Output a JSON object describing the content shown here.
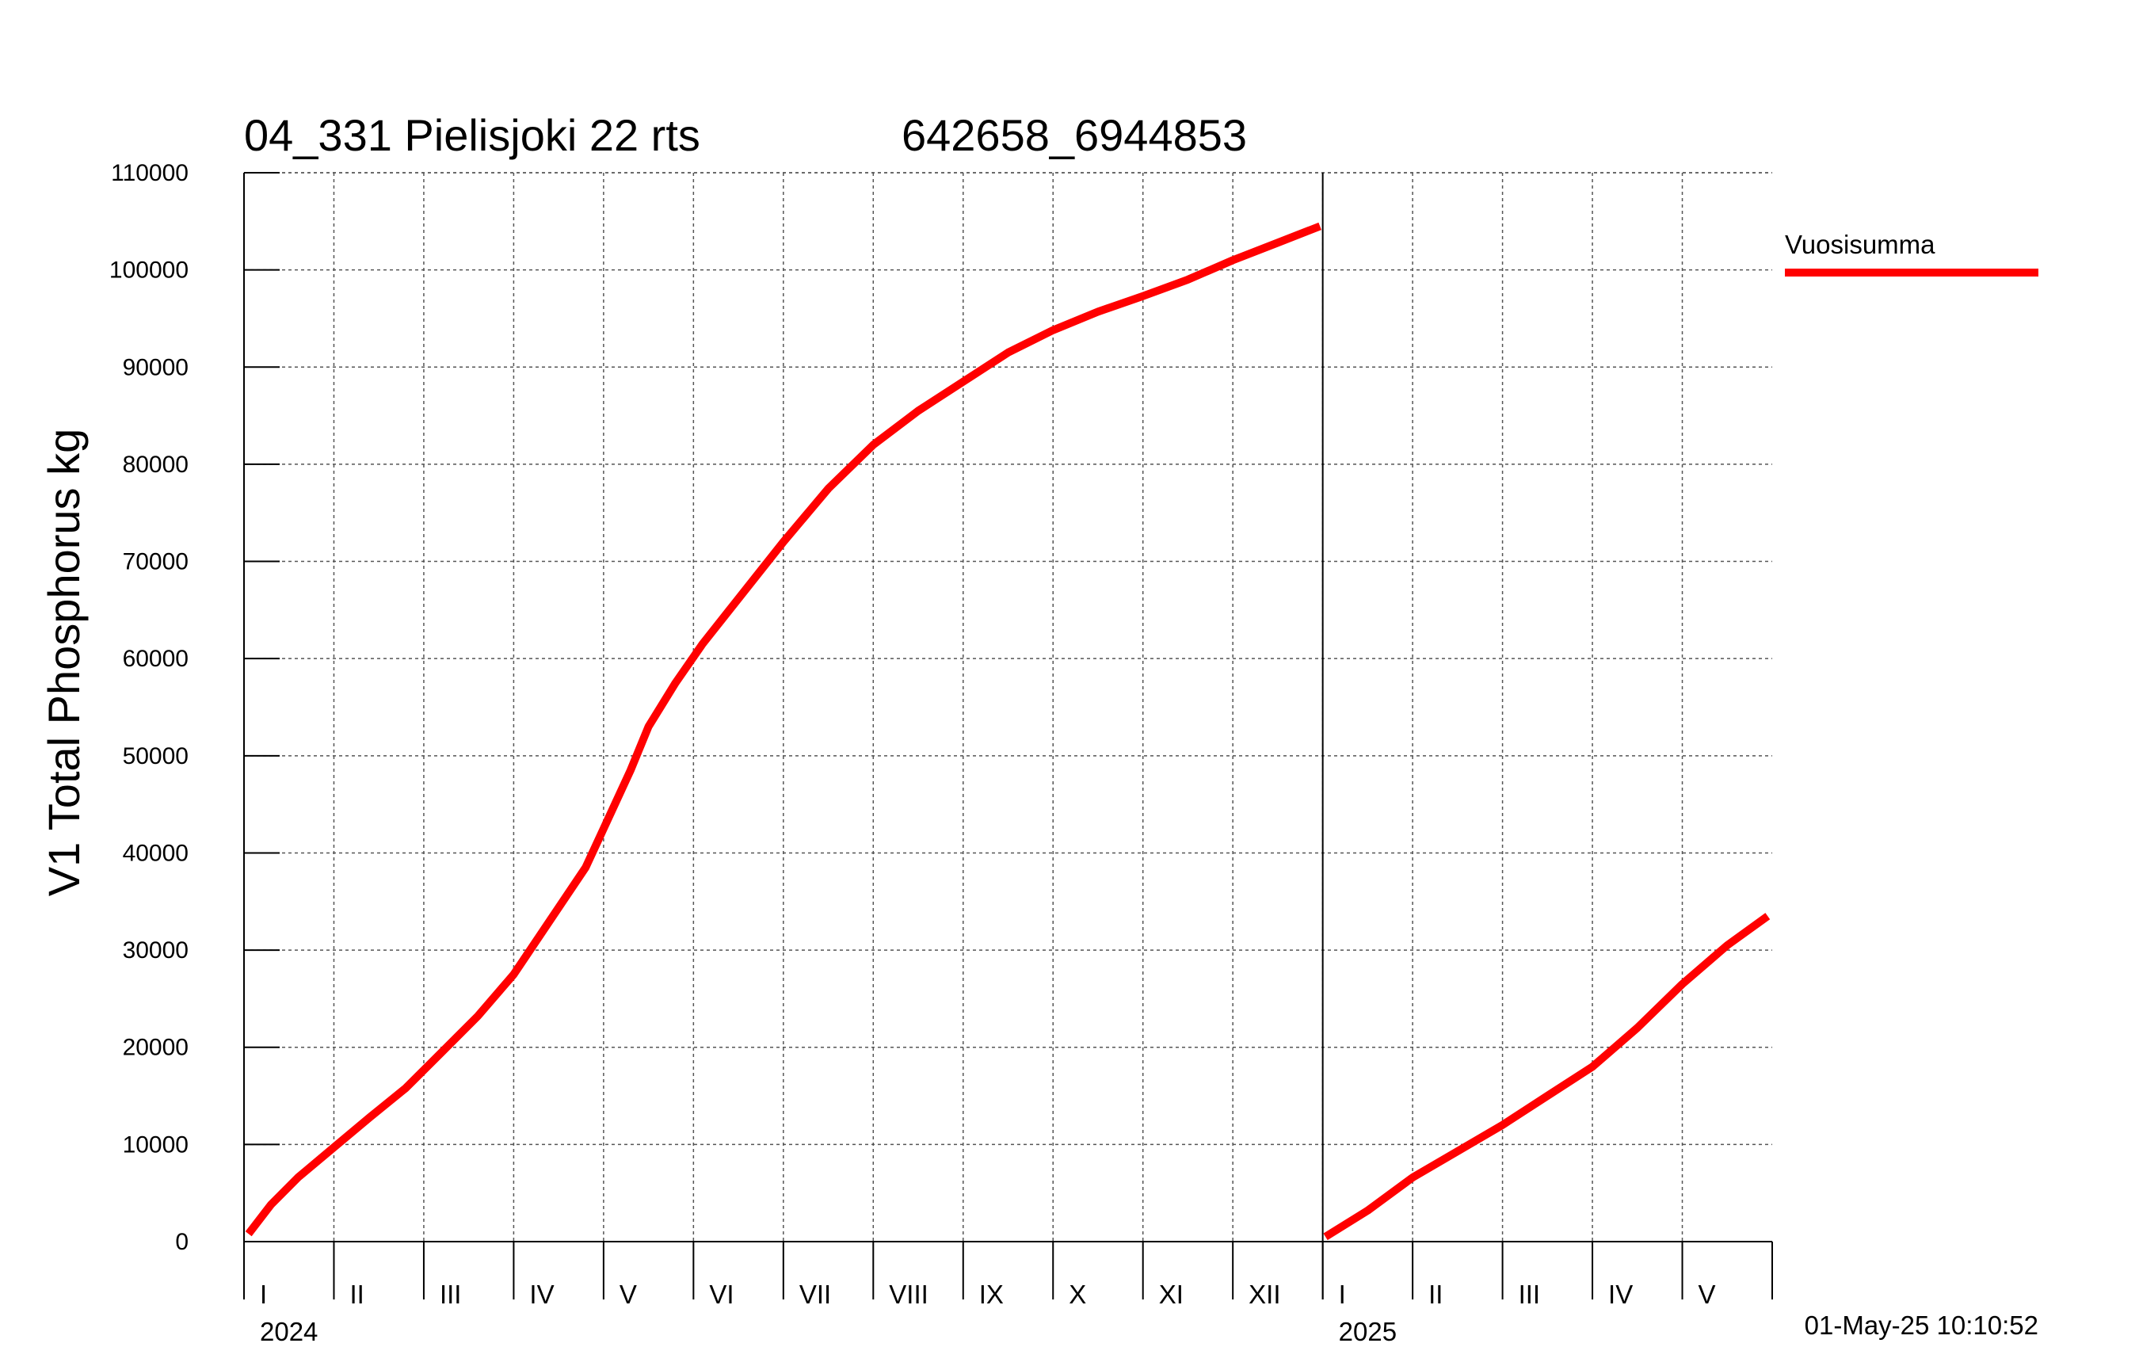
{
  "chart_data": {
    "type": "line",
    "title": "04_331 Pielisjoki 22 rts",
    "subtitle": "642658_6944853",
    "ylabel": "V1 Total Phosphorus kg",
    "ylim": [
      0,
      110000
    ],
    "yticks": [
      "0",
      "10000",
      "20000",
      "30000",
      "40000",
      "50000",
      "60000",
      "70000",
      "80000",
      "90000",
      "100000",
      "110000"
    ],
    "xlim_months": [
      0,
      17
    ],
    "months": [
      "I",
      "II",
      "III",
      "IV",
      "V",
      "VI",
      "VII",
      "VIII",
      "IX",
      "X",
      "XI",
      "XII",
      "I",
      "II",
      "III",
      "IV",
      "V"
    ],
    "years": [
      {
        "label": "2024",
        "month_index": 0
      },
      {
        "label": "2025",
        "month_index": 12
      }
    ],
    "series": [
      {
        "name": "Vuosisumma",
        "color": "#ff0000",
        "segments": [
          {
            "x": [
              0.05,
              0.3,
              0.6,
              1.0,
              1.4,
              1.8,
              2.2,
              2.6,
              3.0,
              3.4,
              3.8,
              4.0,
              4.3,
              4.5,
              4.8,
              5.1,
              5.4,
              5.7,
              6.0,
              6.5,
              7.0,
              7.5,
              8.0,
              8.5,
              9.0,
              9.5,
              10.0,
              10.5,
              11.0,
              11.5,
              11.97
            ],
            "y": [
              800,
              3800,
              6600,
              9700,
              12800,
              15800,
              19500,
              23200,
              27500,
              33000,
              38500,
              42500,
              48500,
              53000,
              57500,
              61500,
              65000,
              68500,
              72000,
              77500,
              82000,
              85500,
              88500,
              91500,
              93800,
              95700,
              97300,
              99000,
              101000,
              102800,
              104500
            ]
          },
          {
            "x": [
              12.03,
              12.5,
              13.0,
              13.5,
              14.0,
              14.5,
              15.0,
              15.5,
              16.0,
              16.5,
              16.95
            ],
            "y": [
              500,
              3200,
              6600,
              9300,
              12000,
              15000,
              18000,
              22000,
              26500,
              30500,
              33500
            ]
          }
        ]
      }
    ],
    "legend": {
      "label": "Vuosisumma",
      "placement": "top-right"
    },
    "grid": true,
    "timestamp": "01-May-25 10:10:52"
  }
}
